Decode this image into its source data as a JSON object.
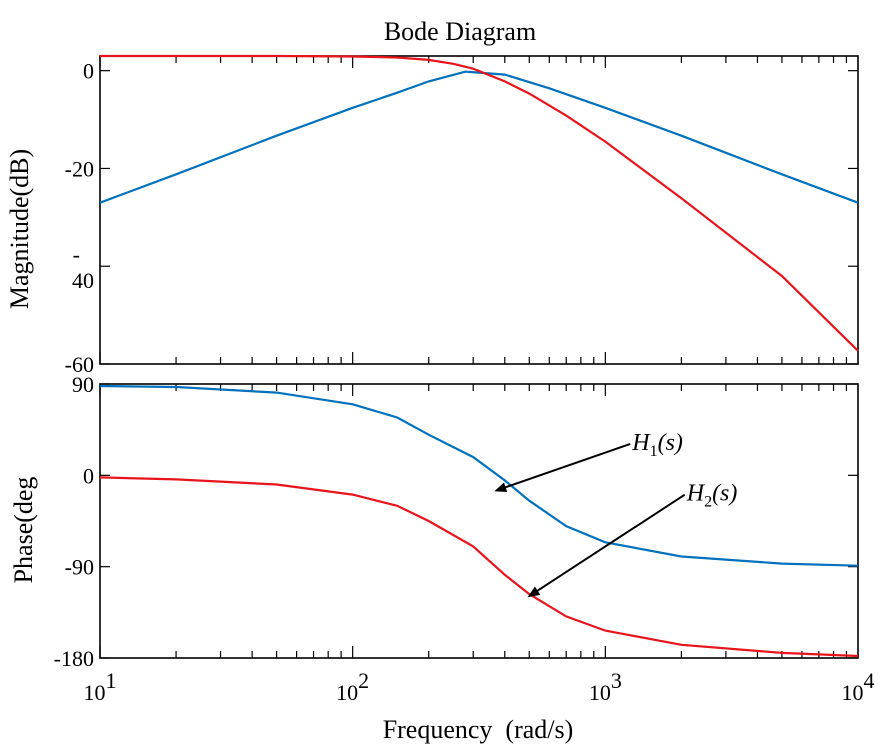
{
  "chart_data": {
    "type": "line",
    "title": "Bode Diagram",
    "xlabel": "Frequency  (rad/s)",
    "xscale": "log",
    "xlim": [
      10,
      10000
    ],
    "x_ticks": [
      {
        "value": 10,
        "base": "10",
        "exp": "1"
      },
      {
        "value": 100,
        "base": "10",
        "exp": "2"
      },
      {
        "value": 1000,
        "base": "10",
        "exp": "3"
      },
      {
        "value": 10000,
        "base": "10",
        "exp": "4"
      }
    ],
    "panels": [
      {
        "name": "magnitude",
        "ylabel": "Magnitude(dB)",
        "ylim": [
          -60,
          3
        ],
        "y_ticks": [
          {
            "value": 0,
            "label": "0"
          },
          {
            "value": -20,
            "label": "-20"
          },
          {
            "value": -40,
            "label": "-\n40"
          },
          {
            "value": -60,
            "label": "-60"
          }
        ],
        "series": [
          {
            "name": "H1(s)",
            "color": "#0072BD",
            "x": [
              10,
              20,
              50,
              100,
              150,
              200,
              280,
              400,
              600,
              1000,
              2000,
              5000,
              10000
            ],
            "y": [
              -27,
              -21.2,
              -13.3,
              -7.6,
              -4.5,
              -2.2,
              -0.2,
              -0.8,
              -3.6,
              -7.6,
              -13.3,
              -21.2,
              -27
            ]
          },
          {
            "name": "H2(s)",
            "color": "#E8141B",
            "x": [
              10,
              50,
              100,
              150,
              200,
              250,
              300,
              400,
              500,
              700,
              1000,
              2000,
              5000,
              10000
            ],
            "y": [
              3,
              3,
              2.9,
              2.7,
              2.2,
              1.4,
              0.4,
              -2.2,
              -4.7,
              -9.2,
              -14.5,
              -26.1,
              -42,
              -57.3
            ]
          }
        ]
      },
      {
        "name": "phase",
        "ylabel": "Phase(deg",
        "ylim": [
          -180,
          90
        ],
        "y_ticks": [
          {
            "value": 90,
            "label": "90"
          },
          {
            "value": 0,
            "label": "0"
          },
          {
            "value": -90,
            "label": "-90"
          },
          {
            "value": -180,
            "label": "-180"
          }
        ],
        "series": [
          {
            "name": "H1(s)",
            "color": "#0072BD",
            "x": [
              10,
              20,
              50,
              100,
              150,
              200,
              300,
              400,
              500,
              700,
              1000,
              2000,
              5000,
              10000
            ],
            "y": [
              88,
              87,
              81.5,
              70,
              57,
              40,
              18,
              -5,
              -25,
              -50,
              -66,
              -80,
              -87,
              -89
            ]
          },
          {
            "name": "H2(s)",
            "color": "#E8141B",
            "x": [
              10,
              20,
              50,
              100,
              150,
              200,
              300,
              400,
              500,
              700,
              1000,
              2000,
              5000,
              10000
            ],
            "y": [
              -2,
              -4,
              -9,
              -19,
              -30,
              -45,
              -70,
              -98,
              -117,
              -139,
              -153,
              -167,
              -175,
              -178
            ]
          }
        ]
      }
    ],
    "annotations": [
      {
        "name": "H1",
        "symbol": "H",
        "sub": "1",
        "arg": "(s)",
        "panel": "phase",
        "text_x": 1400,
        "text_y": 25,
        "point_x": 370,
        "point_y": -15
      },
      {
        "name": "H2",
        "symbol": "H",
        "sub": "2",
        "arg": "(s)",
        "panel": "phase",
        "text_x": 2300,
        "text_y": -25,
        "point_x": 500,
        "point_y": -119
      }
    ]
  }
}
